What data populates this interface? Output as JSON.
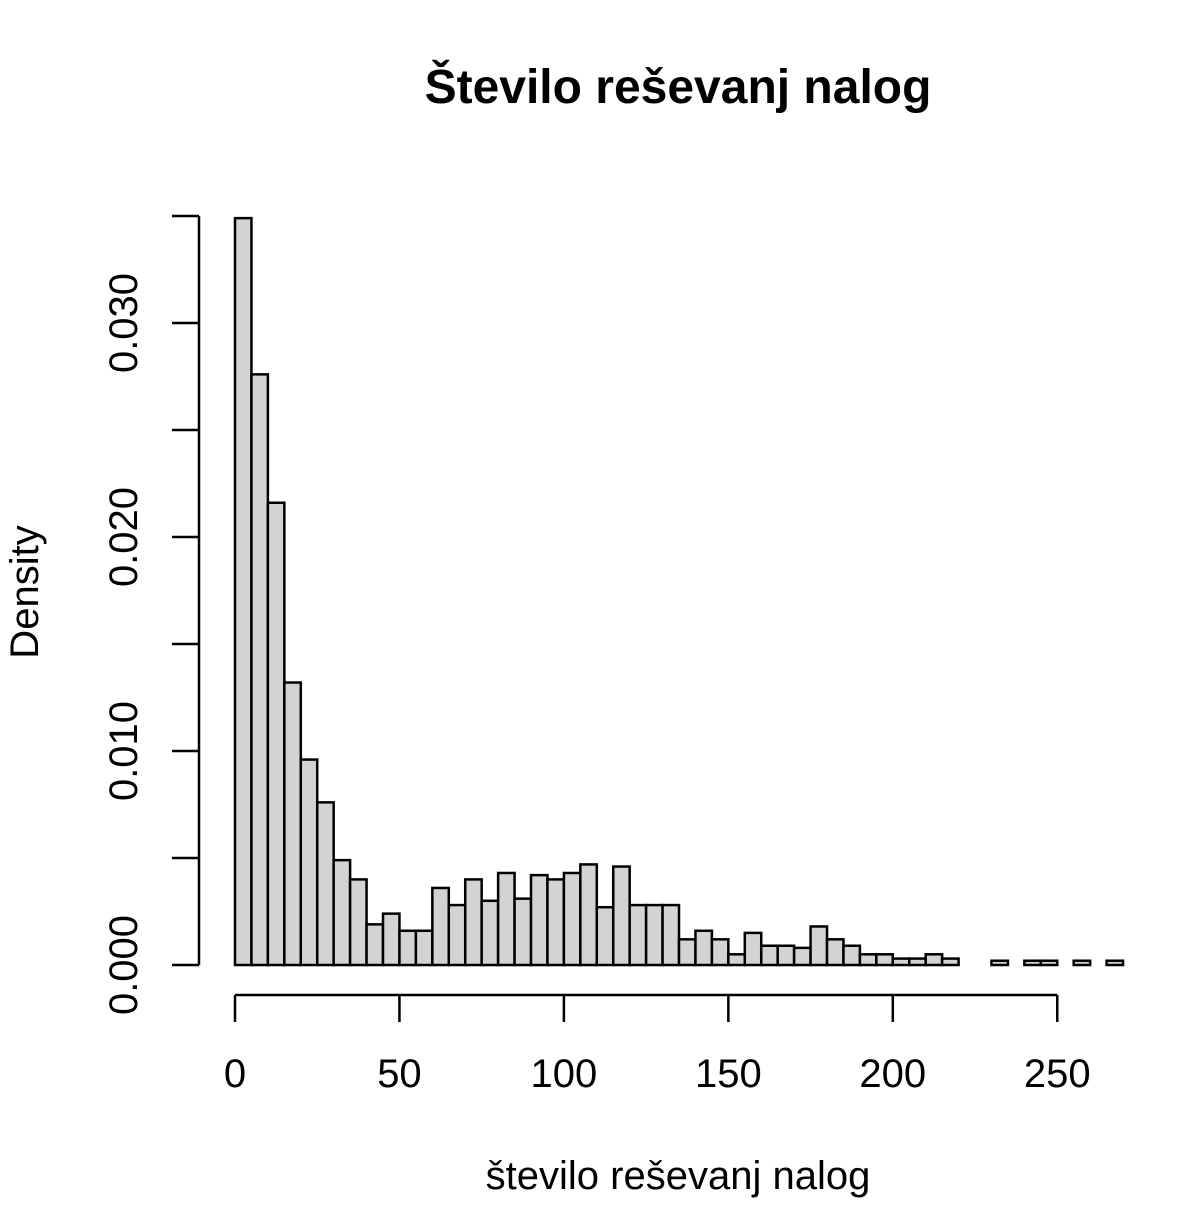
{
  "chart_data": {
    "type": "bar",
    "title": "Število reševanj nalog",
    "xlabel": "število reševanj nalog",
    "ylabel": "Density",
    "bar_color": "#d3d3d3",
    "bin_width": 5,
    "xlim": [
      0,
      270
    ],
    "ylim": [
      0,
      0.035
    ],
    "x_ticks": [
      0,
      50,
      100,
      150,
      200,
      250
    ],
    "y_ticks": [
      0,
      0.005,
      0.01,
      0.015,
      0.02,
      0.025,
      0.03,
      0.035
    ],
    "y_tick_labels": [
      "0.000",
      "",
      "0.010",
      "",
      "0.020",
      "",
      "0.030",
      ""
    ],
    "grid": false,
    "bins_start": 0,
    "values": [
      0.0349,
      0.0276,
      0.0216,
      0.0132,
      0.0096,
      0.0076,
      0.0049,
      0.004,
      0.0019,
      0.0024,
      0.0016,
      0.0016,
      0.0036,
      0.0028,
      0.004,
      0.003,
      0.0043,
      0.0031,
      0.0042,
      0.004,
      0.0043,
      0.0047,
      0.0027,
      0.0046,
      0.0028,
      0.0028,
      0.0028,
      0.0012,
      0.0016,
      0.0012,
      0.0005,
      0.0015,
      0.0009,
      0.0009,
      0.0008,
      0.0018,
      0.0012,
      0.0009,
      0.0005,
      0.0005,
      0.0003,
      0.0003,
      0.0005,
      0.0003,
      0.0,
      0.0,
      0.0002,
      0.0,
      0.0002,
      0.0002,
      0.0,
      0.0002,
      0.0,
      0.0002
    ]
  }
}
